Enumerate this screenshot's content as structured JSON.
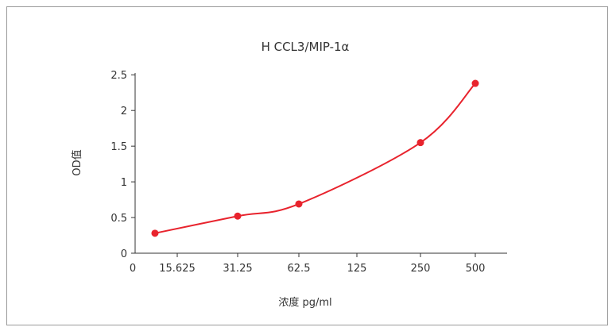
{
  "chart_data": {
    "type": "line",
    "title": "H CCL3/MIP-1α",
    "xlabel": "浓度 pg/ml",
    "ylabel": "OD值",
    "x_scale": "categorical",
    "x_ticks": [
      "0",
      "15.625",
      "31.25",
      "62.5",
      "125",
      "250",
      "500"
    ],
    "y_ticks": [
      "0",
      "0.5",
      "1",
      "1.5",
      "2",
      "2.5"
    ],
    "ylim": [
      0,
      2.5
    ],
    "series": [
      {
        "x": [
          7.8,
          31.25,
          62.5,
          250,
          500
        ],
        "values": [
          0.28,
          0.52,
          0.69,
          1.55,
          2.38
        ]
      }
    ],
    "line_color": "#e8232d",
    "marker_color": "#e8232d",
    "grid": false,
    "legend": "none"
  }
}
